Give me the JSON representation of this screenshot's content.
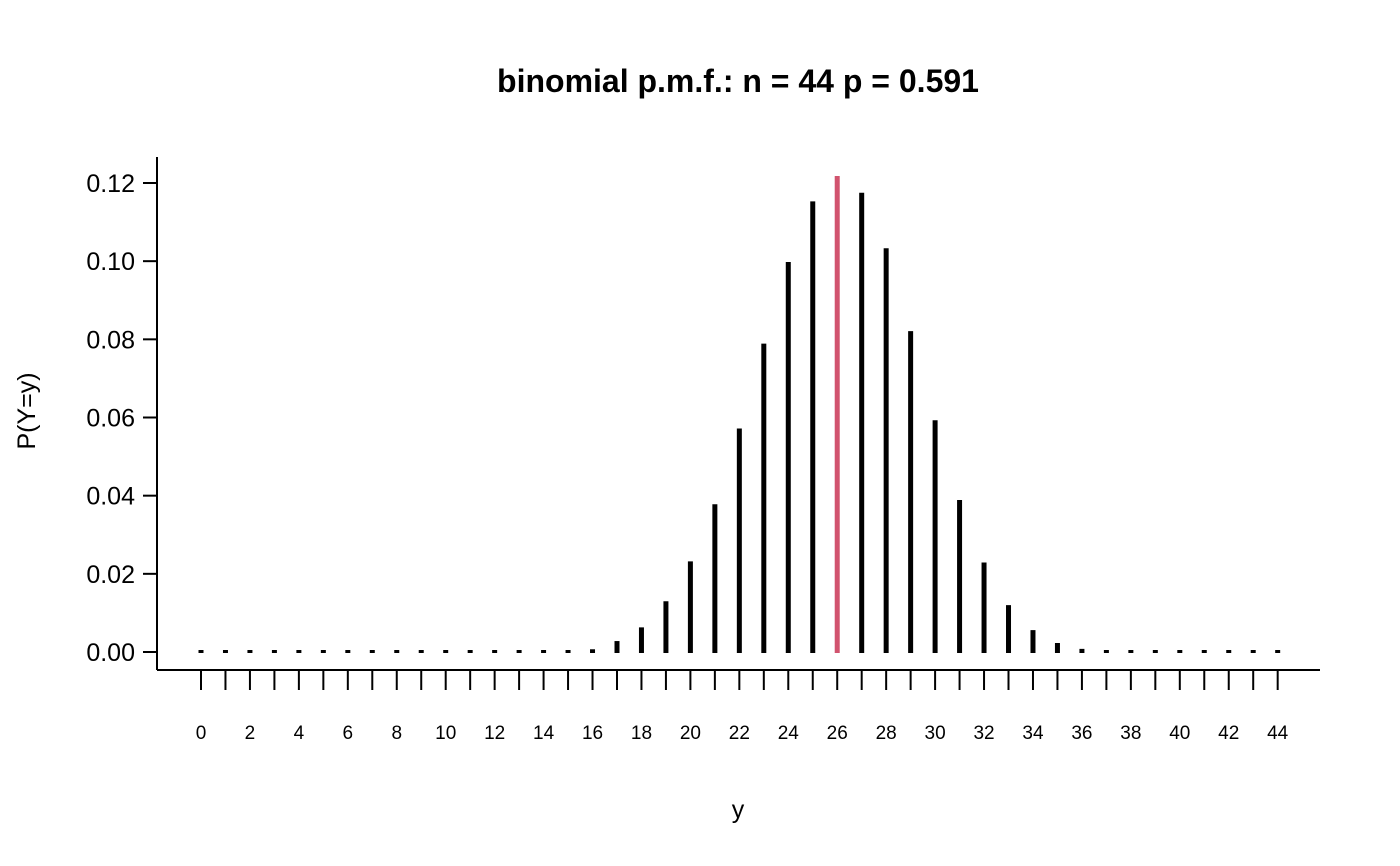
{
  "chart_data": {
    "type": "bar",
    "title": "binomial p.m.f.:  n = 44   p = 0.591",
    "xlabel": "y",
    "ylabel": "P(Y=y)",
    "n": 44,
    "p": 0.591,
    "highlight_x": 26,
    "colors": {
      "bars": "#000000",
      "highlight": "#d1536e",
      "axis": "#000000"
    },
    "ylim": [
      0,
      0.12
    ],
    "y_ticks": [
      "0.00",
      "0.02",
      "0.04",
      "0.06",
      "0.08",
      "0.10",
      "0.12"
    ],
    "x_tick_labels": [
      "0",
      "2",
      "4",
      "6",
      "8",
      "10",
      "12",
      "14",
      "16",
      "18",
      "20",
      "22",
      "24",
      "26",
      "28",
      "30",
      "32",
      "34",
      "36",
      "38",
      "40",
      "42",
      "44"
    ],
    "x": [
      0,
      1,
      2,
      3,
      4,
      5,
      6,
      7,
      8,
      9,
      10,
      11,
      12,
      13,
      14,
      15,
      16,
      17,
      18,
      19,
      20,
      21,
      22,
      23,
      24,
      25,
      26,
      27,
      28,
      29,
      30,
      31,
      32,
      33,
      34,
      35,
      36,
      37,
      38,
      39,
      40,
      41,
      42,
      43,
      44
    ],
    "values": [
      0,
      0,
      0,
      0,
      0,
      0,
      0,
      0,
      0,
      0,
      0,
      0,
      0,
      1e-05,
      5e-05,
      0.0002,
      0.0007,
      0.0028,
      0.0063,
      0.013,
      0.0232,
      0.0378,
      0.0572,
      0.0789,
      0.0998,
      0.1153,
      0.1218,
      0.1175,
      0.1033,
      0.0821,
      0.0593,
      0.0389,
      0.0229,
      0.012,
      0.0056,
      0.0023,
      0.0008,
      0.00025,
      7e-05,
      2e-05,
      0,
      0,
      0,
      0,
      0
    ],
    "grid": false
  }
}
